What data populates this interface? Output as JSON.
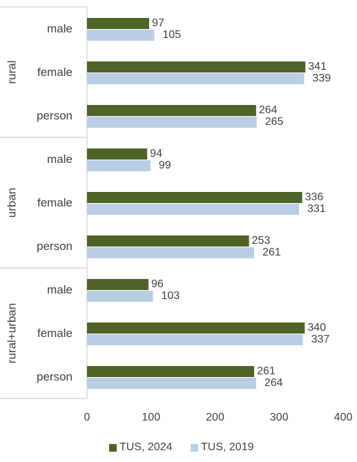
{
  "chart_data": {
    "type": "bar",
    "orientation": "horizontal",
    "title": "",
    "xlabel": "",
    "ylabel": "",
    "xlim": [
      0,
      400
    ],
    "x_ticks": [
      "0",
      "100",
      "200",
      "300",
      "400"
    ],
    "grid": false,
    "legend_position": "bottom",
    "groups": [
      {
        "label": "rural",
        "categories": [
          "male",
          "female",
          "person"
        ]
      },
      {
        "label": "urban",
        "categories": [
          "male",
          "female",
          "person"
        ]
      },
      {
        "label": "rural+urban",
        "categories": [
          "male",
          "female",
          "person"
        ]
      }
    ],
    "series": [
      {
        "name": "TUS, 2024",
        "color": "#4f6228",
        "values": [
          97,
          341,
          264,
          94,
          336,
          253,
          96,
          340,
          261
        ]
      },
      {
        "name": "TUS, 2019",
        "color": "#b9cde5",
        "values": [
          105,
          339,
          265,
          99,
          331,
          261,
          103,
          337,
          264
        ]
      }
    ]
  }
}
